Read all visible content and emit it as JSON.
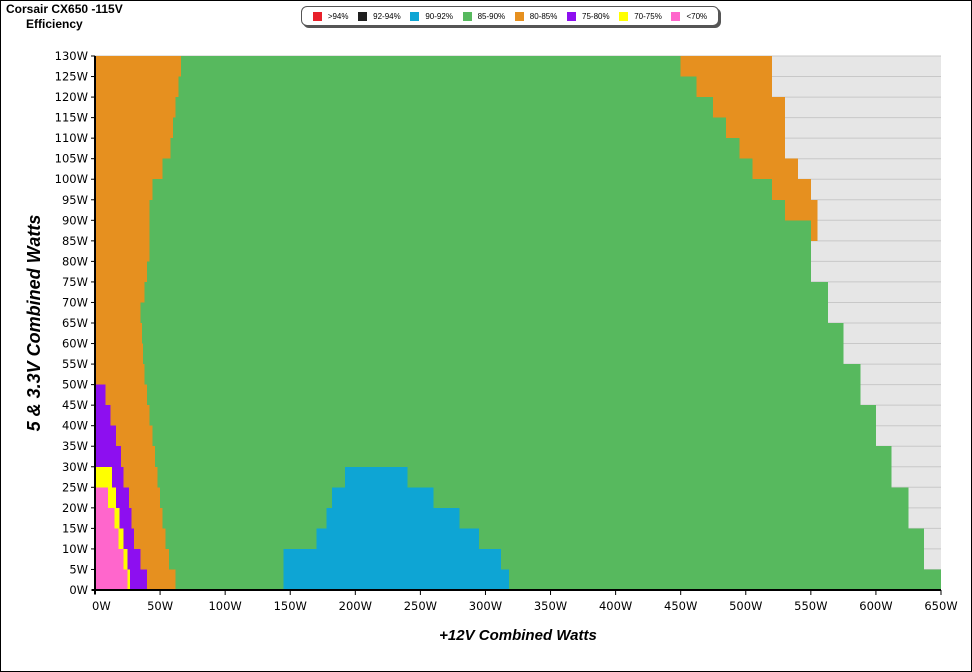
{
  "title": {
    "line1": "Corsair CX650 -115V",
    "line2": "Efficiency"
  },
  "legend": [
    {
      "label": ">94%",
      "color": "#e8202a"
    },
    {
      "label": "92-94%",
      "color": "#1f1f1f"
    },
    {
      "label": "90-92%",
      "color": "#0ea5d4"
    },
    {
      "label": "85-90%",
      "color": "#57b95e"
    },
    {
      "label": "80-85%",
      "color": "#e6901f"
    },
    {
      "label": "75-80%",
      "color": "#8d0ff0"
    },
    {
      "label": "70-75%",
      "color": "#ffff00"
    },
    {
      "label": "<70%",
      "color": "#ff66cc"
    }
  ],
  "chart_data": {
    "type": "heatmap",
    "xlabel": "+12V Combined Watts",
    "ylabel": "5 & 3.3V Combined Watts",
    "xlim": [
      0,
      650
    ],
    "ylim": [
      0,
      130
    ],
    "x_ticks": [
      "0W",
      "50W",
      "100W",
      "150W",
      "200W",
      "250W",
      "300W",
      "350W",
      "400W",
      "450W",
      "500W",
      "550W",
      "600W",
      "650W"
    ],
    "y_ticks": [
      "0W",
      "5W",
      "10W",
      "15W",
      "20W",
      "25W",
      "30W",
      "35W",
      "40W",
      "45W",
      "50W",
      "55W",
      "60W",
      "65W",
      "70W",
      "75W",
      "80W",
      "85W",
      "90W",
      "95W",
      "100W",
      "105W",
      "110W",
      "115W",
      "120W",
      "125W",
      "130W"
    ],
    "grid": "horizontal",
    "colors": {
      "lt70": "#ff66cc",
      "70-75": "#ffff00",
      "75-80": "#8d0ff0",
      "80-85": "#e6901f",
      "85-90": "#57b95e",
      "90-92": "#0ea5d4"
    },
    "region_boundaries_in_watts": {
      "note_order": "per 5W band of 5&3.3V load (y_low), the +12V watt boundaries",
      "bands": [
        {
          "y": 0,
          "pink_end": 25,
          "yellow_end": 27,
          "purple_end": 40,
          "orange_end": 62,
          "blue_start": 145,
          "blue_end": 318,
          "max": 650
        },
        {
          "y": 5,
          "pink_end": 22,
          "yellow_end": 25,
          "purple_end": 35,
          "orange_end": 57,
          "blue_start": 145,
          "blue_end": 312,
          "max": 637
        },
        {
          "y": 10,
          "pink_end": 18,
          "yellow_end": 22,
          "purple_end": 30,
          "orange_end": 54,
          "blue_start": 170,
          "blue_end": 295,
          "max": 637
        },
        {
          "y": 15,
          "pink_end": 15,
          "yellow_end": 19,
          "purple_end": 28,
          "orange_end": 52,
          "blue_start": 178,
          "blue_end": 280,
          "max": 625
        },
        {
          "y": 20,
          "pink_end": 10,
          "yellow_end": 16,
          "purple_end": 26,
          "orange_end": 50,
          "blue_start": 182,
          "blue_end": 260,
          "max": 625
        },
        {
          "y": 25,
          "pink_end": 0,
          "yellow_end": 13,
          "purple_end": 22,
          "orange_end": 48,
          "blue_start": 192,
          "blue_end": 240,
          "max": 612
        },
        {
          "y": 30,
          "pink_end": 0,
          "yellow_end": 0,
          "purple_end": 20,
          "orange_end": 46,
          "blue_start": 0,
          "blue_end": 0,
          "max": 612
        },
        {
          "y": 35,
          "pink_end": 0,
          "yellow_end": 0,
          "purple_end": 16,
          "orange_end": 44,
          "blue_start": 0,
          "blue_end": 0,
          "max": 600
        },
        {
          "y": 40,
          "pink_end": 0,
          "yellow_end": 0,
          "purple_end": 12,
          "orange_end": 42,
          "blue_start": 0,
          "blue_end": 0,
          "max": 600
        },
        {
          "y": 45,
          "pink_end": 0,
          "yellow_end": 0,
          "purple_end": 8,
          "orange_end": 40,
          "blue_start": 0,
          "blue_end": 0,
          "max": 588
        },
        {
          "y": 50,
          "pink_end": 0,
          "yellow_end": 0,
          "purple_end": 0,
          "orange_end": 38,
          "blue_start": 0,
          "blue_end": 0,
          "max": 588
        },
        {
          "y": 55,
          "pink_end": 0,
          "yellow_end": 0,
          "purple_end": 0,
          "orange_end": 37,
          "blue_start": 0,
          "blue_end": 0,
          "max": 575
        },
        {
          "y": 60,
          "pink_end": 0,
          "yellow_end": 0,
          "purple_end": 0,
          "orange_end": 36,
          "blue_start": 0,
          "blue_end": 0,
          "max": 575
        },
        {
          "y": 65,
          "pink_end": 0,
          "yellow_end": 0,
          "purple_end": 0,
          "orange_end": 35,
          "blue_start": 0,
          "blue_end": 0,
          "max": 563
        },
        {
          "y": 70,
          "pink_end": 0,
          "yellow_end": 0,
          "purple_end": 0,
          "orange_end": 38,
          "blue_start": 0,
          "blue_end": 0,
          "max": 563
        },
        {
          "y": 75,
          "pink_end": 0,
          "yellow_end": 0,
          "purple_end": 0,
          "orange_end": 40,
          "blue_start": 0,
          "blue_end": 0,
          "max": 550
        },
        {
          "y": 80,
          "pink_end": 0,
          "yellow_end": 0,
          "purple_end": 0,
          "orange_end": 42,
          "blue_start": 0,
          "blue_end": 0,
          "max": 550
        },
        {
          "y": 85,
          "pink_end": 0,
          "yellow_end": 0,
          "purple_end": 0,
          "orange_end": 42,
          "blue_start": 0,
          "blue_end": 0,
          "max": 555
        },
        {
          "y": 90,
          "pink_end": 0,
          "yellow_end": 0,
          "purple_end": 0,
          "orange_end": 42,
          "blue_start": 0,
          "blue_end": 0,
          "max": 555
        },
        {
          "y": 95,
          "pink_end": 0,
          "yellow_end": 0,
          "purple_end": 0,
          "orange_end": 44,
          "blue_start": 0,
          "blue_end": 0,
          "max": 550
        },
        {
          "y": 100,
          "pink_end": 0,
          "yellow_end": 0,
          "purple_end": 0,
          "orange_end": 52,
          "blue_start": 0,
          "blue_end": 0,
          "max": 540
        },
        {
          "y": 105,
          "pink_end": 0,
          "yellow_end": 0,
          "purple_end": 0,
          "orange_end": 58,
          "blue_start": 0,
          "blue_end": 0,
          "max": 530
        },
        {
          "y": 110,
          "pink_end": 0,
          "yellow_end": 0,
          "purple_end": 0,
          "orange_end": 60,
          "blue_start": 0,
          "blue_end": 0,
          "max": 530
        },
        {
          "y": 115,
          "pink_end": 0,
          "yellow_end": 0,
          "purple_end": 0,
          "orange_end": 62,
          "blue_start": 0,
          "blue_end": 0,
          "max": 530
        },
        {
          "y": 120,
          "pink_end": 0,
          "yellow_end": 0,
          "purple_end": 0,
          "orange_end": 64,
          "blue_start": 0,
          "blue_end": 0,
          "max": 520
        },
        {
          "y": 125,
          "pink_end": 0,
          "yellow_end": 0,
          "purple_end": 0,
          "orange_end": 66,
          "blue_start": 0,
          "blue_end": 0,
          "max": 520
        }
      ],
      "right_orange_start_by_band": [
        {
          "y": 85,
          "start": 550
        },
        {
          "y": 90,
          "start": 530
        },
        {
          "y": 95,
          "start": 520
        },
        {
          "y": 100,
          "start": 505
        },
        {
          "y": 105,
          "start": 495
        },
        {
          "y": 110,
          "start": 485
        },
        {
          "y": 115,
          "start": 475
        },
        {
          "y": 120,
          "start": 462
        },
        {
          "y": 125,
          "start": 450
        }
      ]
    }
  }
}
